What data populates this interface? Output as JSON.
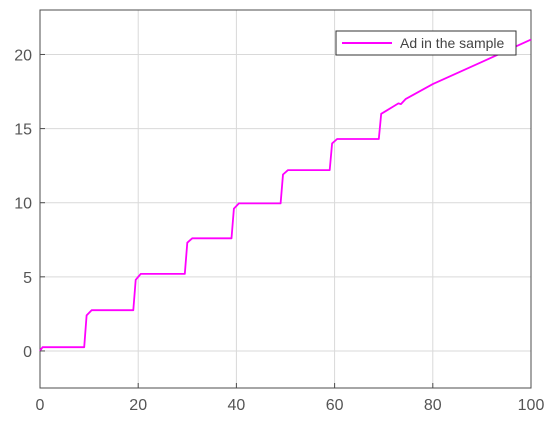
{
  "chart_data": {
    "type": "line",
    "title": "",
    "xlabel": "",
    "ylabel": "",
    "xlim": [
      0,
      100
    ],
    "ylim": [
      -2.5,
      23
    ],
    "xticks": [
      0,
      20,
      40,
      60,
      80,
      100
    ],
    "yticks": [
      0,
      5,
      10,
      15,
      20
    ],
    "xtick_labels": [
      "0",
      "20",
      "40",
      "60",
      "80",
      "100"
    ],
    "ytick_labels": [
      "0",
      "5",
      "10",
      "15",
      "20"
    ],
    "grid": true,
    "legend": {
      "position": "top-right",
      "entries": [
        "Ad in the sample"
      ]
    },
    "colors": {
      "series": "#ff00ff",
      "grid": "#d9d9d9",
      "axes": "#4d4d4d"
    },
    "series": [
      {
        "name": "Ad in the sample",
        "x": [
          0,
          0.5,
          9,
          9.5,
          10.5,
          19,
          19.5,
          20.5,
          29.5,
          30,
          31,
          39,
          39.5,
          40.5,
          49,
          49.5,
          50.5,
          59,
          59.5,
          60.5,
          69,
          69.5,
          70.5,
          72,
          73,
          73.5,
          74.5,
          80,
          90,
          100
        ],
        "y": [
          0,
          0.25,
          0.25,
          2.4,
          2.75,
          2.75,
          4.8,
          5.2,
          5.2,
          7.3,
          7.6,
          7.6,
          9.6,
          9.95,
          9.95,
          11.9,
          12.2,
          12.2,
          14.0,
          14.3,
          14.3,
          16.0,
          16.2,
          16.5,
          16.7,
          16.65,
          17.0,
          18.0,
          19.5,
          21.0
        ]
      }
    ]
  }
}
